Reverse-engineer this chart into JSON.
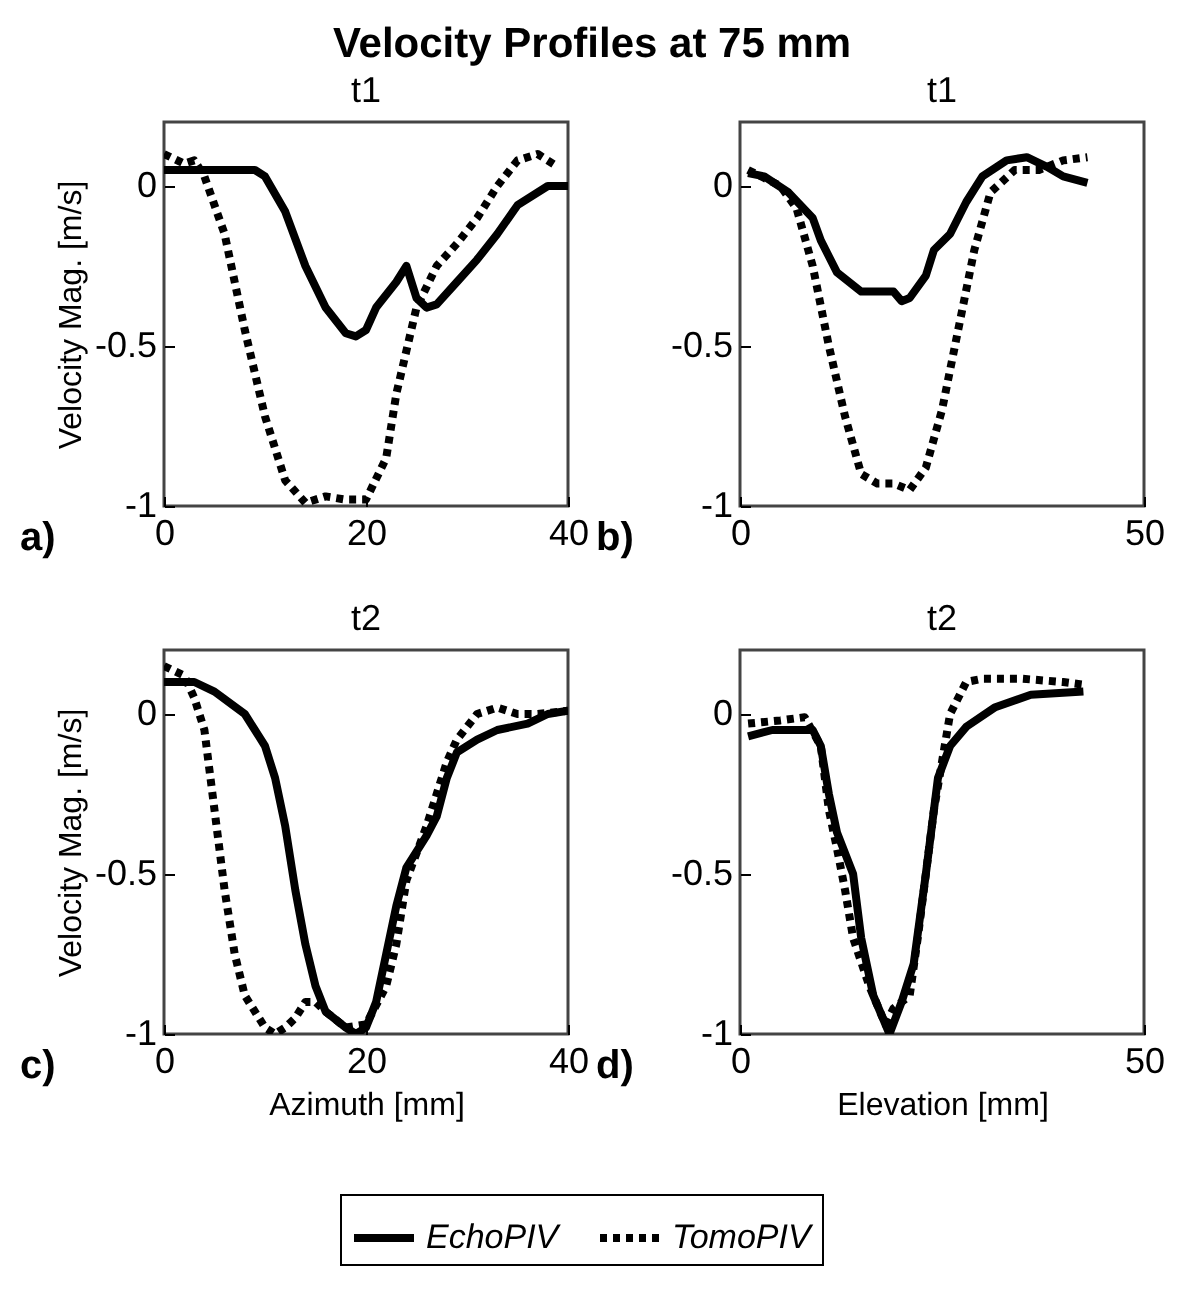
{
  "chart_data": [
    {
      "type": "line",
      "title": "Velocity Profiles at 75 mm",
      "subtitle": "t1",
      "ylabel": "Velocity Mag. [m/s]",
      "xlim": [
        0,
        40
      ],
      "xticks": [
        0,
        20,
        40
      ],
      "ylim": [
        -1,
        0.2
      ],
      "yticks": [
        -1,
        -0.5,
        0
      ],
      "annotations": [
        "a)"
      ],
      "legend": "bottom",
      "series": [
        {
          "name": "EchoPIV",
          "color": "#000000",
          "line_style": "solid",
          "x": [
            0,
            5,
            9,
            10,
            12,
            14,
            16,
            18,
            19,
            20,
            21,
            23,
            24,
            25,
            26,
            27,
            29,
            31,
            33,
            35,
            38,
            40
          ],
          "values": [
            0.05,
            0.05,
            0.05,
            0.03,
            -0.08,
            -0.25,
            -0.38,
            -0.46,
            -0.47,
            -0.45,
            -0.38,
            -0.3,
            -0.25,
            -0.35,
            -0.38,
            -0.37,
            -0.3,
            -0.23,
            -0.15,
            -0.06,
            0,
            0
          ]
        },
        {
          "name": "TomoPIV",
          "color": "#000000",
          "line_style": "dotted",
          "x": [
            0,
            2,
            3,
            4,
            6,
            8,
            10,
            12,
            14,
            16,
            18,
            20,
            22,
            23,
            25,
            27,
            29,
            31,
            33,
            35,
            37,
            39
          ],
          "values": [
            0.1,
            0.07,
            0.08,
            0.03,
            -0.15,
            -0.45,
            -0.72,
            -0.92,
            -0.99,
            -0.97,
            -0.98,
            -0.98,
            -0.85,
            -0.65,
            -0.38,
            -0.25,
            -0.18,
            -0.1,
            0,
            0.08,
            0.1,
            0.06
          ]
        }
      ]
    },
    {
      "type": "line",
      "title": "t1",
      "xlim": [
        0,
        50
      ],
      "xticks": [
        0,
        50
      ],
      "ylim": [
        -1,
        0.2
      ],
      "yticks": [
        -1,
        -0.5,
        0
      ],
      "annotations": [
        "b)"
      ],
      "series": [
        {
          "name": "EchoPIV",
          "color": "#000000",
          "line_style": "solid",
          "x": [
            1,
            3,
            6,
            9,
            10,
            12,
            15,
            19,
            20,
            21,
            23,
            24,
            26,
            28,
            30,
            33,
            35.5,
            38,
            40,
            43
          ],
          "values": [
            0.04,
            0.03,
            -0.02,
            -0.1,
            -0.17,
            -0.27,
            -0.33,
            -0.33,
            -0.36,
            -0.35,
            -0.28,
            -0.2,
            -0.15,
            -0.05,
            0.03,
            0.08,
            0.09,
            0.06,
            0.03,
            0.01
          ]
        },
        {
          "name": "TomoPIV",
          "color": "#000000",
          "line_style": "dotted",
          "x": [
            1,
            5,
            7,
            9,
            11,
            13,
            15,
            17,
            19,
            21,
            23,
            25,
            27,
            29,
            31,
            34,
            37,
            40,
            43
          ],
          "values": [
            0.05,
            0,
            -0.07,
            -0.25,
            -0.5,
            -0.72,
            -0.9,
            -0.93,
            -0.93,
            -0.95,
            -0.88,
            -0.7,
            -0.45,
            -0.2,
            -0.02,
            0.05,
            0.05,
            0.08,
            0.09
          ]
        }
      ]
    },
    {
      "type": "line",
      "title": "t2",
      "xlabel": "Azimuth [mm]",
      "ylabel": "Velocity Mag. [m/s]",
      "xlim": [
        0,
        40
      ],
      "xticks": [
        0,
        20,
        40
      ],
      "ylim": [
        -1,
        0.2
      ],
      "yticks": [
        -1,
        -0.5,
        0
      ],
      "annotations": [
        "c)"
      ],
      "series": [
        {
          "name": "EchoPIV",
          "color": "#000000",
          "line_style": "solid",
          "x": [
            0,
            3,
            5,
            8,
            10,
            11,
            12,
            13,
            14,
            15,
            16,
            18,
            19,
            20,
            21,
            22,
            23,
            24,
            26,
            27,
            28,
            29,
            31,
            33,
            36,
            38,
            40
          ],
          "values": [
            0.1,
            0.1,
            0.07,
            0,
            -0.1,
            -0.2,
            -0.35,
            -0.55,
            -0.72,
            -0.85,
            -0.93,
            -0.98,
            -1,
            -0.98,
            -0.9,
            -0.75,
            -0.6,
            -0.48,
            -0.38,
            -0.32,
            -0.2,
            -0.12,
            -0.08,
            -0.05,
            -0.03,
            0,
            0.01
          ]
        },
        {
          "name": "TomoPIV",
          "color": "#000000",
          "line_style": "dotted",
          "x": [
            0,
            2,
            3,
            4,
            5,
            6,
            7,
            8,
            10,
            11,
            12,
            13,
            14,
            15,
            16,
            18,
            20,
            22,
            23,
            24,
            26,
            28,
            29,
            31,
            33,
            35,
            37,
            40
          ],
          "values": [
            0.15,
            0.12,
            0.05,
            -0.05,
            -0.3,
            -0.55,
            -0.75,
            -0.88,
            -0.98,
            -1,
            -0.98,
            -0.95,
            -0.9,
            -0.9,
            -0.93,
            -0.98,
            -0.97,
            -0.85,
            -0.72,
            -0.52,
            -0.35,
            -0.15,
            -0.08,
            0,
            0.02,
            0,
            0,
            0.01
          ]
        }
      ]
    },
    {
      "type": "line",
      "title": "t2",
      "xlabel": "Elevation [mm]",
      "xlim": [
        0,
        50
      ],
      "xticks": [
        0,
        50
      ],
      "ylim": [
        -1,
        0.2
      ],
      "yticks": [
        -1,
        -0.5,
        0
      ],
      "annotations": [
        "d)"
      ],
      "series": [
        {
          "name": "EchoPIV",
          "color": "#000000",
          "line_style": "solid",
          "x": [
            1,
            4,
            9,
            10,
            11,
            12,
            14,
            15,
            16.5,
            18.5,
            20,
            21.5,
            23,
            24.5,
            26,
            28,
            31.5,
            36,
            42.5
          ],
          "values": [
            -0.07,
            -0.05,
            -0.05,
            -0.1,
            -0.25,
            -0.37,
            -0.5,
            -0.7,
            -0.88,
            -1,
            -0.9,
            -0.78,
            -0.5,
            -0.2,
            -0.1,
            -0.04,
            0.02,
            0.06,
            0.07
          ]
        },
        {
          "name": "TomoPIV",
          "color": "#000000",
          "line_style": "dotted",
          "x": [
            1,
            5,
            8,
            10,
            11,
            12,
            13,
            14,
            16,
            18,
            19,
            21,
            22,
            23,
            24,
            26,
            28,
            30,
            35,
            40,
            43
          ],
          "values": [
            -0.03,
            -0.02,
            -0.01,
            -0.1,
            -0.3,
            -0.42,
            -0.55,
            -0.7,
            -0.85,
            -0.97,
            -0.92,
            -0.88,
            -0.7,
            -0.5,
            -0.3,
            0,
            0.1,
            0.11,
            0.11,
            0.1,
            0.09
          ]
        }
      ]
    }
  ]
}
